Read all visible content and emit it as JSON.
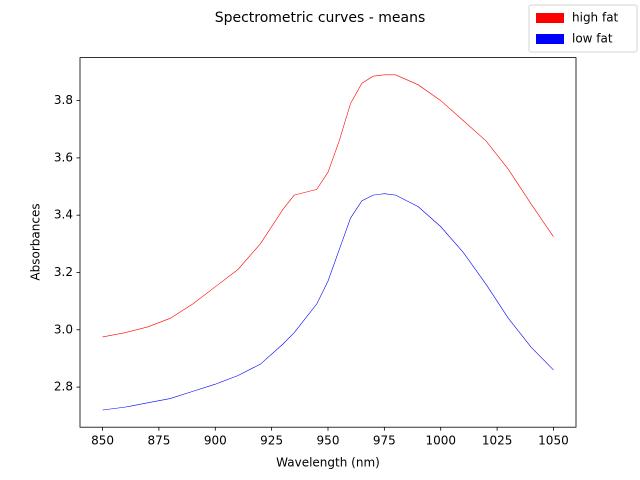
{
  "chart_data": {
    "type": "line",
    "title": "Spectrometric curves - means",
    "xlabel": "Wavelength (nm)",
    "ylabel": "Absorbances",
    "x": [
      850,
      860,
      870,
      880,
      890,
      900,
      910,
      920,
      930,
      935,
      940,
      945,
      950,
      955,
      960,
      965,
      970,
      975,
      980,
      990,
      1000,
      1010,
      1020,
      1030,
      1040,
      1050
    ],
    "series": [
      {
        "name": "high fat",
        "color": "#ff0000",
        "values": [
          2.975,
          2.99,
          3.01,
          3.04,
          3.09,
          3.15,
          3.21,
          3.3,
          3.42,
          3.47,
          3.48,
          3.49,
          3.55,
          3.66,
          3.79,
          3.86,
          3.885,
          3.89,
          3.89,
          3.855,
          3.8,
          3.73,
          3.66,
          3.56,
          3.44,
          3.325
        ]
      },
      {
        "name": "low fat",
        "color": "#0000ff",
        "values": [
          2.72,
          2.73,
          2.745,
          2.76,
          2.785,
          2.81,
          2.84,
          2.88,
          2.95,
          2.99,
          3.04,
          3.09,
          3.17,
          3.28,
          3.39,
          3.45,
          3.47,
          3.475,
          3.47,
          3.43,
          3.36,
          3.27,
          3.16,
          3.04,
          2.94,
          2.86
        ]
      }
    ],
    "xlim": [
      840,
      1060
    ],
    "ylim": [
      2.66,
      3.95
    ],
    "xticks": [
      850,
      875,
      900,
      925,
      950,
      975,
      1000,
      1025,
      1050
    ],
    "yticks": [
      2.8,
      {
        "value": 3,
        "label": "3.0"
      },
      3.2,
      3.4,
      3.6,
      3.8
    ],
    "legend": "upper right"
  }
}
